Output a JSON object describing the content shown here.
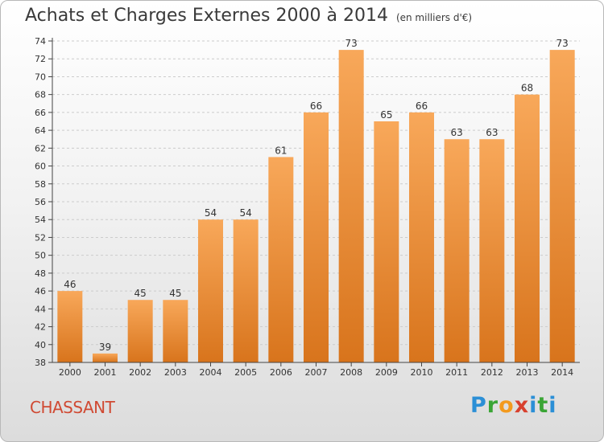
{
  "title": "Achats et Charges Externes 2000 à 2014",
  "unit_note": "(en milliers d'€)",
  "town_name": "CHASSANT",
  "brand": {
    "letters": [
      "P",
      "r",
      "o",
      "x",
      "i",
      "t",
      "i"
    ],
    "colors": [
      "#2b8fd6",
      "#3aa535",
      "#f39a1e",
      "#d8402e",
      "#2b8fd6",
      "#3aa535",
      "#2b8fd6"
    ]
  },
  "colors": {
    "bar_light": "#f8a85a",
    "bar_dark": "#d8741c",
    "axis": "#444444",
    "grid": "#cccccc",
    "title": "#3a3a3a",
    "town": "#d04a33"
  },
  "chart_data": {
    "type": "bar",
    "title": "Achats et Charges Externes 2000 à 2014",
    "xlabel": "",
    "ylabel": "",
    "categories": [
      "2000",
      "2001",
      "2002",
      "2003",
      "2004",
      "2005",
      "2006",
      "2007",
      "2008",
      "2009",
      "2010",
      "2011",
      "2012",
      "2013",
      "2014"
    ],
    "values": [
      46,
      39,
      45,
      45,
      54,
      54,
      61,
      66,
      73,
      65,
      66,
      63,
      63,
      68,
      73
    ],
    "ylim": [
      38,
      74
    ],
    "yticks": [
      38,
      40,
      42,
      44,
      46,
      48,
      50,
      52,
      54,
      56,
      58,
      60,
      62,
      64,
      66,
      68,
      70,
      72,
      74
    ],
    "grid": "horizontal dashed",
    "legend": "none"
  }
}
